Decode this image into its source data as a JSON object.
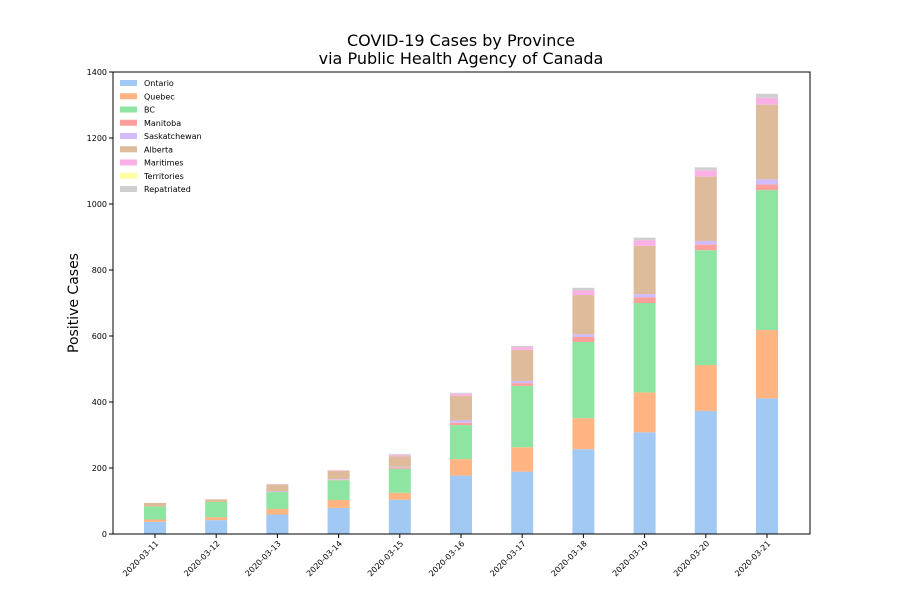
{
  "chart_data": {
    "type": "bar",
    "stacked": true,
    "title": "COVID-19 Cases by Province",
    "subtitle": "via Public Health Agency of Canada",
    "xlabel": "",
    "ylabel": "Positive Cases",
    "ylim": [
      0,
      1400
    ],
    "yticks": [
      0,
      200,
      400,
      600,
      800,
      1000,
      1200,
      1400
    ],
    "grid": false,
    "legend_position": "top-left",
    "categories": [
      "2020-03-11",
      "2020-03-12",
      "2020-03-13",
      "2020-03-14",
      "2020-03-15",
      "2020-03-16",
      "2020-03-17",
      "2020-03-18",
      "2020-03-19",
      "2020-03-20",
      "2020-03-21"
    ],
    "series": [
      {
        "name": "Ontario",
        "color": "#a1c9f4",
        "values": [
          37,
          42,
          59,
          79,
          104,
          177,
          189,
          257,
          308,
          373,
          411
        ]
      },
      {
        "name": "Quebec",
        "color": "#ffb482",
        "values": [
          7,
          9,
          17,
          24,
          21,
          50,
          74,
          94,
          121,
          139,
          207
        ]
      },
      {
        "name": "BC",
        "color": "#8de5a1",
        "values": [
          39,
          46,
          51,
          60,
          73,
          103,
          186,
          231,
          271,
          348,
          424
        ]
      },
      {
        "name": "Manitoba",
        "color": "#ff9f9b",
        "values": [
          0,
          0,
          0,
          1,
          4,
          7,
          8,
          15,
          17,
          17,
          17
        ]
      },
      {
        "name": "Saskatchewan",
        "color": "#d0bbff",
        "values": [
          0,
          0,
          2,
          2,
          2,
          7,
          7,
          8,
          10,
          11,
          16
        ]
      },
      {
        "name": "Alberta",
        "color": "#debb9b",
        "values": [
          11,
          8,
          21,
          25,
          31,
          75,
          94,
          119,
          146,
          195,
          226
        ]
      },
      {
        "name": "Maritimes",
        "color": "#fab0e4",
        "values": [
          0,
          0,
          1,
          2,
          4,
          6,
          8,
          14,
          17,
          19,
          21
        ]
      },
      {
        "name": "Territories",
        "color": "#fffea3",
        "values": [
          0,
          0,
          0,
          0,
          0,
          0,
          0,
          0,
          0,
          0,
          0
        ]
      },
      {
        "name": "Repatriated",
        "color": "#cfcfcf",
        "values": [
          0,
          0,
          0,
          0,
          3,
          3,
          4,
          8,
          8,
          9,
          12
        ]
      }
    ]
  }
}
